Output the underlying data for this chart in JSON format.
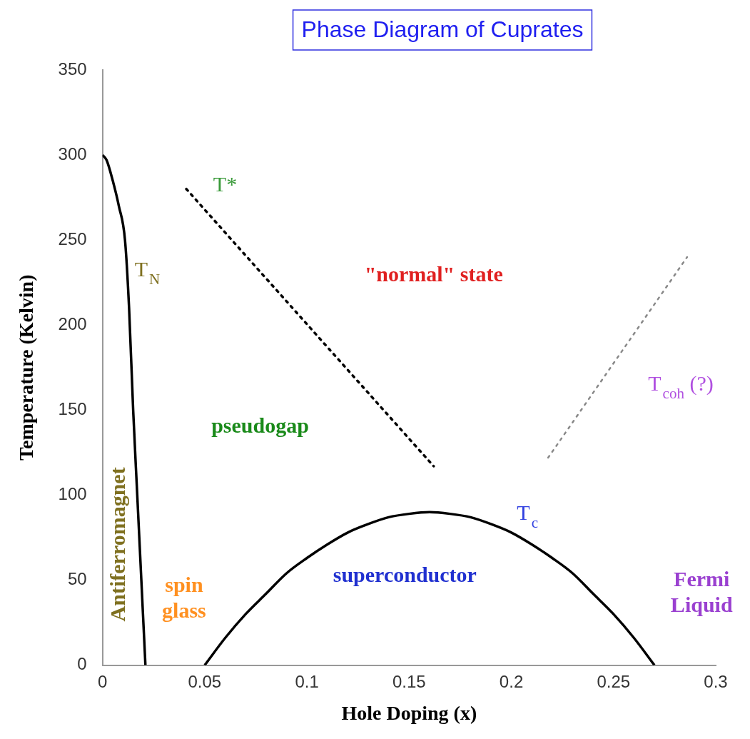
{
  "chart_data": {
    "type": "line",
    "title": "Phase Diagram of Cuprates",
    "xlabel": "Hole Doping (x)",
    "ylabel": "Temperature (Kelvin)",
    "xlim": [
      0,
      0.3
    ],
    "xticks": [
      0,
      0.05,
      0.1,
      0.15,
      0.2,
      0.25,
      0.3
    ],
    "ylim": [
      0,
      350
    ],
    "yticks": [
      0,
      50,
      100,
      150,
      200,
      250,
      300,
      350
    ],
    "grid": false,
    "legend": false,
    "marker": "none",
    "series": [
      {
        "color": "#000000",
        "line_style": "solid",
        "x": [
          0,
          0.002,
          0.005,
          0.008,
          0.011,
          0.013,
          0.015,
          0.017,
          0.019,
          0.021
        ],
        "values": [
          300,
          297,
          285,
          270,
          250,
          210,
          150,
          100,
          50,
          0
        ]
      },
      {
        "color": "#000000",
        "line_style": "solid",
        "x": [
          0.05,
          0.06,
          0.07,
          0.08,
          0.09,
          0.1,
          0.11,
          0.12,
          0.13,
          0.14,
          0.15,
          0.16,
          0.17,
          0.18,
          0.19,
          0.2,
          0.21,
          0.22,
          0.23,
          0.24,
          0.25,
          0.26,
          0.27
        ],
        "values": [
          0,
          16,
          30,
          42,
          54,
          63,
          71,
          78,
          83,
          87,
          89,
          90,
          89,
          87,
          83,
          78,
          71,
          63,
          54,
          42,
          30,
          16,
          0
        ]
      },
      {
        "color": "#000000",
        "line_style": "dotted",
        "x": [
          0.041,
          0.162
        ],
        "values": [
          280,
          117
        ]
      },
      {
        "color": "#888888",
        "line_style": "dotted",
        "x": [
          0.218,
          0.286
        ],
        "values": [
          122,
          240
        ]
      }
    ],
    "annotations": [
      "Antiferromagnet",
      "T$_{N}$",
      "T*",
      "\"normal\" state",
      "pseudogap",
      "spin\nglass",
      "superconductor",
      "T$_{c}$",
      "T$_{coh}$ (?)",
      "Fermi\nLiquid"
    ]
  }
}
